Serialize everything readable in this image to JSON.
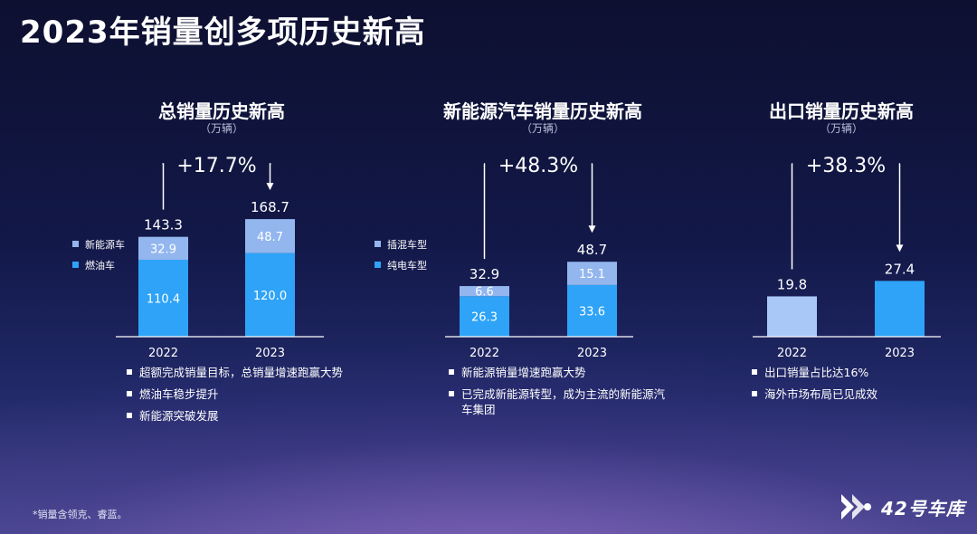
{
  "title": "2023年销量创多项历史新高",
  "footnote": "*销量含领克、睿蓝。",
  "brand": {
    "name": "42号车库",
    "logo_icon": "forward-arrows-icon"
  },
  "colors": {
    "primary_bar": "#2ea3f7",
    "secondary_bar": "#93b6ef",
    "export_2022": "#a9c8f8",
    "axis": "#ffffff"
  },
  "chart_data": [
    {
      "type": "bar",
      "stacked": true,
      "title": "总销量历史新高",
      "unit": "（万辆）",
      "categories": [
        "2022",
        "2023"
      ],
      "series": [
        {
          "name": "燃油车",
          "values": [
            110.4,
            120.0
          ],
          "labels": [
            "110.4",
            "120.0"
          ]
        },
        {
          "name": "新能源车",
          "values": [
            32.9,
            48.7
          ],
          "labels": [
            "32.9",
            "48.7"
          ]
        }
      ],
      "totals": [
        "143.3",
        "168.7"
      ],
      "growth": "+17.7%",
      "legend_position": "left",
      "notes": [
        "超额完成销量目标，总销量增速跑赢大势",
        "燃油车稳步提升",
        "新能源突破发展"
      ]
    },
    {
      "type": "bar",
      "stacked": true,
      "title": "新能源汽车销量历史新高",
      "unit": "（万辆）",
      "categories": [
        "2022",
        "2023"
      ],
      "series": [
        {
          "name": "纯电车型",
          "values": [
            26.3,
            33.6
          ],
          "labels": [
            "26.3",
            "33.6"
          ]
        },
        {
          "name": "插混车型",
          "values": [
            6.6,
            15.1
          ],
          "labels": [
            "6.6",
            "15.1"
          ]
        }
      ],
      "totals": [
        "32.9",
        "48.7"
      ],
      "growth": "+48.3%",
      "legend_position": "left",
      "notes": [
        "新能源销量增速跑赢大势",
        "已完成新能源转型，成为主流的新能源汽车集团"
      ]
    },
    {
      "type": "bar",
      "stacked": false,
      "title": "出口销量历史新高",
      "unit": "（万辆）",
      "categories": [
        "2022",
        "2023"
      ],
      "series": [
        {
          "values": [
            19.8,
            27.4
          ]
        }
      ],
      "totals": [
        "19.8",
        "27.4"
      ],
      "growth": "+38.3%",
      "notes": [
        "出口销量占比达16%",
        "海外市场布局已见成效"
      ]
    }
  ]
}
